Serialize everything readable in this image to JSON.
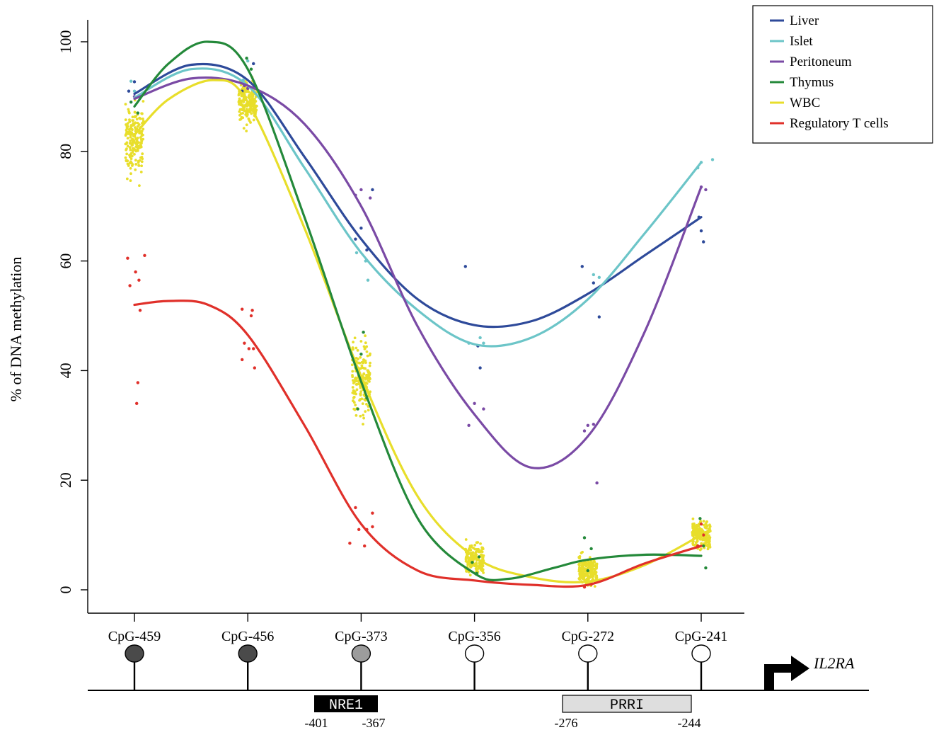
{
  "chart_data": {
    "type": "scatter",
    "title": "",
    "ylabel": "% of DNA methylation",
    "xlabel": "",
    "ylim": [
      0,
      100
    ],
    "yticks": [
      0,
      20,
      40,
      60,
      80,
      100
    ],
    "categories": [
      "CpG-459",
      "CpG-456",
      "CpG-373",
      "CpG-356",
      "CpG-272",
      "CpG-241"
    ],
    "legend_position": "top-right",
    "series": [
      {
        "name": "Liver",
        "color": "#2e4a9a",
        "curve": [
          [
            1,
            90.5
          ],
          [
            1.5,
            95.8
          ],
          [
            2,
            93
          ],
          [
            2.5,
            79
          ],
          [
            3,
            64
          ],
          [
            3.5,
            53
          ],
          [
            4,
            48.3
          ],
          [
            4.5,
            49
          ],
          [
            5,
            54
          ],
          [
            5.5,
            61
          ],
          [
            6,
            68
          ]
        ],
        "points": [
          [
            1,
            92.7
          ],
          [
            0.95,
            91
          ],
          [
            1.05,
            90
          ],
          [
            2.05,
            96
          ],
          [
            1.95,
            91
          ],
          [
            3,
            66
          ],
          [
            2.95,
            64
          ],
          [
            3.05,
            62
          ],
          [
            3.1,
            73
          ],
          [
            3.92,
            59
          ],
          [
            4.03,
            44.5
          ],
          [
            4.05,
            40.5
          ],
          [
            4.95,
            59
          ],
          [
            5.05,
            56
          ],
          [
            5.1,
            49.8
          ],
          [
            6,
            65.5
          ],
          [
            6.02,
            63.5
          ],
          [
            5.98,
            68
          ]
        ]
      },
      {
        "name": "Islet",
        "color": "#6cc5c8",
        "curve": [
          [
            1,
            89.8
          ],
          [
            1.5,
            95
          ],
          [
            2,
            92
          ],
          [
            2.5,
            77
          ],
          [
            3,
            61.5
          ],
          [
            3.5,
            51
          ],
          [
            4,
            44.8
          ],
          [
            4.5,
            46
          ],
          [
            5,
            53
          ],
          [
            5.5,
            65
          ],
          [
            6,
            78
          ]
        ],
        "points": [
          [
            1,
            91
          ],
          [
            0.97,
            92.8
          ],
          [
            2,
            96.5
          ],
          [
            1.96,
            93
          ],
          [
            2.96,
            61.5
          ],
          [
            3.04,
            60
          ],
          [
            3.06,
            56.5
          ],
          [
            3.95,
            45
          ],
          [
            4.05,
            46
          ],
          [
            4.08,
            45
          ],
          [
            5.05,
            57.5
          ],
          [
            5.1,
            57
          ],
          [
            6,
            78
          ],
          [
            6.1,
            78.5
          ],
          [
            5.97,
            77
          ]
        ]
      },
      {
        "name": "Peritoneum",
        "color": "#7a4aa5",
        "curve": [
          [
            1,
            89.6
          ],
          [
            1.5,
            93.3
          ],
          [
            2,
            92
          ],
          [
            2.5,
            85
          ],
          [
            3,
            70
          ],
          [
            3.5,
            48
          ],
          [
            4,
            32
          ],
          [
            4.5,
            22.3
          ],
          [
            5,
            28
          ],
          [
            5.5,
            47
          ],
          [
            6,
            73.5
          ]
        ],
        "points": [
          [
            1,
            90
          ],
          [
            2,
            91.5
          ],
          [
            1.97,
            92
          ],
          [
            3,
            73
          ],
          [
            3.08,
            71.5
          ],
          [
            2.95,
            72
          ],
          [
            4,
            34
          ],
          [
            3.95,
            30
          ],
          [
            4.08,
            33
          ],
          [
            5,
            30
          ],
          [
            5.05,
            30.2
          ],
          [
            5.08,
            19.5
          ],
          [
            4.97,
            29
          ],
          [
            6,
            73.5
          ],
          [
            6.04,
            73
          ]
        ]
      },
      {
        "name": "Thymus",
        "color": "#24893a",
        "curve": [
          [
            1,
            88.2
          ],
          [
            1.3,
            96
          ],
          [
            1.65,
            100
          ],
          [
            2,
            95
          ],
          [
            2.5,
            68
          ],
          [
            3,
            38
          ],
          [
            3.5,
            13
          ],
          [
            4,
            3
          ],
          [
            4.3,
            2
          ],
          [
            4.7,
            4
          ],
          [
            5,
            5.5
          ],
          [
            5.5,
            6.4
          ],
          [
            6,
            6.2
          ]
        ],
        "points": [
          [
            0.97,
            89
          ],
          [
            1.03,
            87
          ],
          [
            1.99,
            97
          ],
          [
            2.03,
            95
          ],
          [
            3,
            43
          ],
          [
            2.97,
            33
          ],
          [
            3.05,
            35
          ],
          [
            3.02,
            47
          ],
          [
            3.98,
            5
          ],
          [
            4.02,
            3
          ],
          [
            4.04,
            6
          ],
          [
            4.97,
            9.5
          ],
          [
            5.03,
            7.5
          ],
          [
            5.0,
            3.5
          ],
          [
            5.99,
            13
          ],
          [
            6.02,
            8
          ],
          [
            6.04,
            4
          ]
        ]
      },
      {
        "name": "WBC",
        "color": "#e8de2b",
        "curve": [
          [
            1,
            83
          ],
          [
            1.3,
            89.5
          ],
          [
            1.7,
            93
          ],
          [
            2,
            89
          ],
          [
            2.5,
            66
          ],
          [
            3,
            39
          ],
          [
            3.5,
            17
          ],
          [
            4,
            6
          ],
          [
            4.5,
            2.3
          ],
          [
            5,
            1.5
          ],
          [
            5.5,
            4.5
          ],
          [
            6,
            10
          ]
        ],
        "points": []
      },
      {
        "name": "Regulatory T cells",
        "color": "#e0302a",
        "curve": [
          [
            1,
            52
          ],
          [
            1.3,
            52.7
          ],
          [
            1.65,
            52
          ],
          [
            2,
            46.5
          ],
          [
            2.5,
            30
          ],
          [
            3,
            12
          ],
          [
            3.5,
            3.5
          ],
          [
            4,
            1.7
          ],
          [
            4.5,
            0.9
          ],
          [
            5,
            0.9
          ],
          [
            5.5,
            4.8
          ],
          [
            6,
            8
          ]
        ],
        "points": [
          [
            0.94,
            60.5
          ],
          [
            1.01,
            58
          ],
          [
            1.09,
            61
          ],
          [
            0.96,
            55.5
          ],
          [
            1.04,
            56.5
          ],
          [
            1.05,
            51
          ],
          [
            1.03,
            37.8
          ],
          [
            1.02,
            34
          ],
          [
            1.95,
            51.2
          ],
          [
            2.03,
            50
          ],
          [
            2.04,
            51
          ],
          [
            1.97,
            45
          ],
          [
            2.01,
            44
          ],
          [
            2.05,
            44
          ],
          [
            1.95,
            42
          ],
          [
            2.06,
            40.5
          ],
          [
            2.9,
            8.5
          ],
          [
            2.95,
            15
          ],
          [
            3.05,
            11
          ],
          [
            3.1,
            11.5
          ],
          [
            3.1,
            14
          ],
          [
            2.98,
            11
          ],
          [
            3.03,
            8
          ],
          [
            6,
            12
          ],
          [
            6.02,
            10
          ],
          [
            5.97,
            8
          ],
          [
            5.03,
            1
          ],
          [
            4.97,
            0.5
          ]
        ]
      }
    ],
    "annotations": [
      {
        "type": "cpg",
        "label": "CpG-459",
        "methylation_fill": "#4a4a4a"
      },
      {
        "type": "cpg",
        "label": "CpG-456",
        "methylation_fill": "#4a4a4a"
      },
      {
        "type": "cpg",
        "label": "CpG-373",
        "methylation_fill": "#9c9c9c"
      },
      {
        "type": "cpg",
        "label": "CpG-356",
        "methylation_fill": "#ffffff"
      },
      {
        "type": "cpg",
        "label": "CpG-272",
        "methylation_fill": "#ffffff"
      },
      {
        "type": "cpg",
        "label": "CpG-241",
        "methylation_fill": "#ffffff"
      }
    ],
    "regions": [
      {
        "label": "NRE1",
        "start": "-401",
        "end": "-367",
        "style": "dark"
      },
      {
        "label": "PRRI",
        "start": "-276",
        "end": "-244",
        "style": "light"
      }
    ],
    "gene": "IL2RA"
  }
}
